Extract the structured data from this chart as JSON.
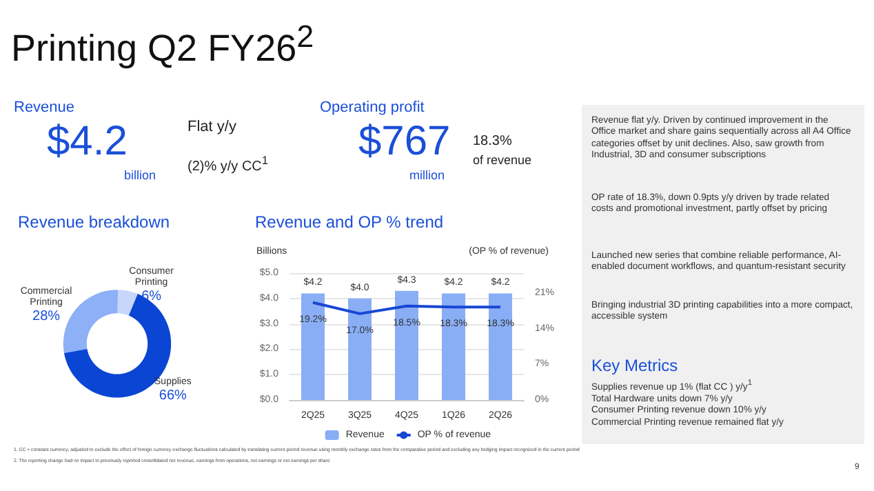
{
  "chart_data": [
    {
      "type": "other",
      "title": "Printing Q2 FY26$^{2}$",
      "annotations": [
        "Revenue",
        "$4.2",
        "billion",
        "Flat y/y",
        "(2)% y/y CC$^{1}$",
        "Operating profit",
        "$767",
        "million",
        "18.3%",
        "of revenue",
        "Revenue flat y/y. Driven by continued improvement in the Office market and share gains sequentially across all A4 Office categories offset by unit declines. Also, saw growth from Industrial, 3D and consumer subscriptions",
        "OP rate of 18.3%, down 0.9pts y/y driven by trade related costs and promotional investment, partly offset by pricing",
        "Launched new series that combine reliable performance, AI-enabled document workflows, and quantum-resistant security",
        "Bringing industrial 3D printing capabilities into a more compact, accessible system",
        "Key Metrics",
        "Supplies revenue up 1% (flat CC ) y/y$^{1}$",
        "Total Hardware units down 7% y/y",
        "Consumer Printing revenue down 10% y/y",
        "Commercial Printing revenue remained flat y/y",
        "1.  CC = constant currency; adjusted to exclude the effect of foreign currency exchange fluctuations calculated by translating current period revenue using monthly exchange rates from the comparative period and excluding any hedging impact recognized in the current period",
        "2.  The reporting change had no impact to previously reported consolidated net revenue, earnings from operations, net earnings or net earnings per share",
        "9"
      ]
    },
    {
      "type": "donut",
      "title": "Revenue breakdown",
      "categories": [
        "Commercial Printing",
        "Consumer Printing",
        "Supplies"
      ],
      "values": [
        28,
        6,
        66
      ],
      "colors": [
        "#8db0f6",
        "#c6d7fb",
        "#0a45d3"
      ],
      "value_labels": [
        "28%",
        "6%",
        "66%"
      ],
      "legend": false
    },
    {
      "type": "bar",
      "title": "Revenue and OP % trend",
      "ylabel": "Billions",
      "y2label": "(OP % of revenue)",
      "categories": [
        "2Q25",
        "3Q25",
        "4Q25",
        "1Q26",
        "2Q26"
      ],
      "series": [
        {
          "name": "Revenue",
          "type": "bar",
          "color": "#8aaef6",
          "values": [
            4.2,
            4.0,
            4.3,
            4.2,
            4.2
          ],
          "value_labels": [
            "$4.2",
            "$4.0",
            "$4.3",
            "$4.2",
            "$4.2"
          ]
        },
        {
          "name": "OP % of revenue",
          "type": "line",
          "axis": "y2",
          "color": "#1747d4",
          "values": [
            19.2,
            17.0,
            18.5,
            18.3,
            18.3
          ],
          "value_labels": [
            "19.2%",
            "17.0%",
            "18.5%",
            "18.3%",
            "18.3%"
          ]
        }
      ],
      "ylim": [
        0,
        5
      ],
      "yticks": [
        {
          "value": 0,
          "label": "$0.0"
        },
        {
          "value": 1,
          "label": "$1.0"
        },
        {
          "value": 2,
          "label": "$2.0"
        },
        {
          "value": 3,
          "label": "$3.0"
        },
        {
          "value": 4,
          "label": "$4.0"
        },
        {
          "value": 5,
          "label": "$5.0"
        }
      ],
      "y2lim": [
        0,
        25
      ],
      "y2ticks": [
        {
          "value": 0,
          "label": "0%"
        },
        {
          "value": 7,
          "label": "7%"
        },
        {
          "value": 14,
          "label": "14%"
        },
        {
          "value": 21,
          "label": "21%"
        }
      ],
      "grid": "y",
      "legend": "bottom",
      "marker": "none",
      "line_style": "solid"
    }
  ]
}
